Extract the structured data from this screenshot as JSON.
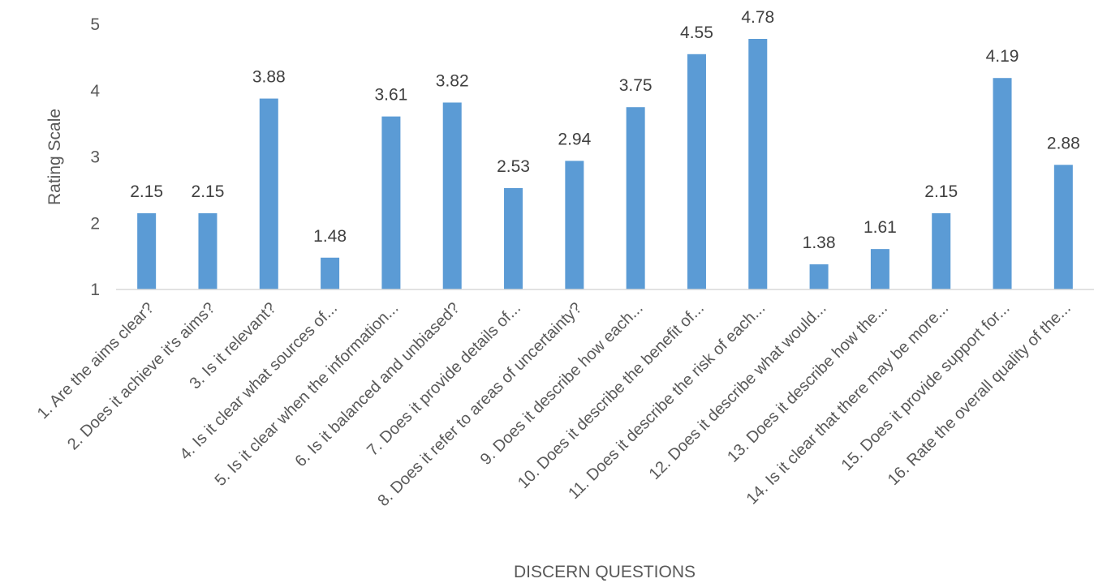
{
  "chart_data": {
    "type": "bar",
    "title": "",
    "xlabel": "DISCERN QUESTIONS",
    "ylabel": "Rating Scale",
    "ylim": [
      1,
      5
    ],
    "yticks": [
      1,
      2,
      3,
      4,
      5
    ],
    "grid": false,
    "bar_color": "#5b9bd5",
    "categories": [
      "1. Are the aims clear?",
      "2. Does it achieve it's aims?",
      "3. Is it relevant?",
      "4. Is it clear what sources of...",
      "5. Is it clear when the information...",
      "6. Is it balanced and unbiased?",
      "7. Does it provide details of...",
      "8. Does it refer to areas of uncertainty?",
      "9. Does it describe how each...",
      "10. Does it describe the benefit of...",
      "11. Does it describe the risk of each...",
      "12. Does it describe what would...",
      "13. Does it describe how the...",
      "14. Is it clear that there may be more...",
      "15. Does it provide support for...",
      "16. Rate the overall quality of the..."
    ],
    "values": [
      2.15,
      2.15,
      3.88,
      1.48,
      3.61,
      3.82,
      2.53,
      2.94,
      3.75,
      4.55,
      4.78,
      1.38,
      1.61,
      2.15,
      4.19,
      2.88
    ],
    "data_labels": [
      "2.15",
      "2.15",
      "3.88",
      "1.48",
      "3.61",
      "3.82",
      "2.53",
      "2.94",
      "3.75",
      "4.55",
      "4.78",
      "1.38",
      "1.61",
      "2.15",
      "4.19",
      "2.88"
    ]
  }
}
